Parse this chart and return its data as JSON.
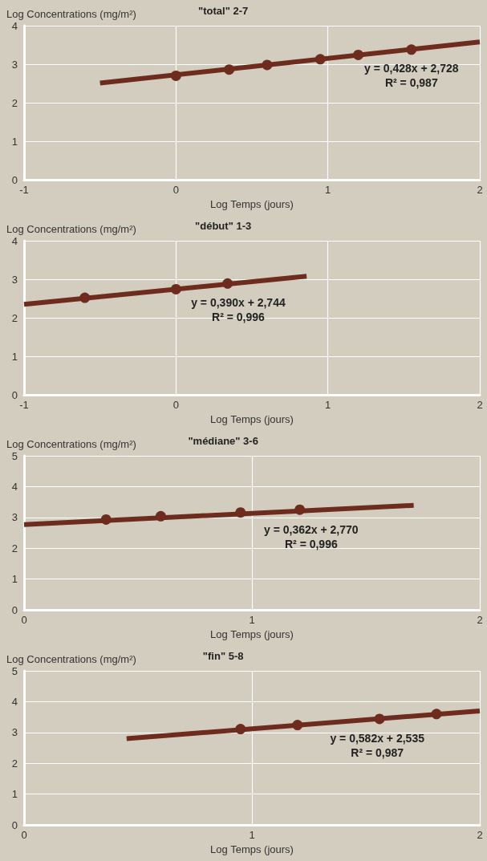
{
  "chart_data": [
    {
      "type": "scatter",
      "title": "\"total\" 2-7",
      "xlabel": "Log Temps (jours)",
      "ylabel": "Log Concentrations (mg/m²)",
      "xlim": [
        -1,
        2
      ],
      "xticks": [
        -1,
        0,
        1,
        2
      ],
      "ylim": [
        0,
        4
      ],
      "yticks": [
        0,
        1,
        2,
        3,
        4
      ],
      "grid": true,
      "marker": "circle",
      "series": [
        {
          "type": "line",
          "color": "#6e2c1e",
          "x": [
            -0.5,
            2
          ],
          "values": [
            2.51,
            3.58
          ],
          "marker": "none"
        },
        {
          "type": "scatter",
          "color": "#6e2c1e",
          "x": [
            0,
            0.35,
            0.6,
            0.95,
            1.2,
            1.55
          ],
          "values": [
            2.7,
            2.86,
            2.98,
            3.13,
            3.24,
            3.38
          ]
        }
      ],
      "annotations": [
        "y = 0,428x + 2,728",
        "R² = 0,987"
      ]
    },
    {
      "type": "scatter",
      "title": "\"début\" 1-3",
      "xlabel": "Log Temps (jours)",
      "ylabel": "Log Concentrations (mg/m²)",
      "xlim": [
        -1,
        2
      ],
      "xticks": [
        -1,
        0,
        1,
        2
      ],
      "ylim": [
        0,
        4
      ],
      "yticks": [
        0,
        1,
        2,
        3,
        4
      ],
      "grid": true,
      "marker": "circle",
      "series": [
        {
          "type": "line",
          "color": "#6e2c1e",
          "x": [
            -1,
            0.86
          ],
          "values": [
            2.35,
            3.08
          ],
          "marker": "none"
        },
        {
          "type": "scatter",
          "color": "#6e2c1e",
          "x": [
            -0.6,
            0,
            0.34
          ],
          "values": [
            2.52,
            2.74,
            2.89
          ]
        }
      ],
      "annotations": [
        "y = 0,390x + 2,744",
        "R² = 0,996"
      ]
    },
    {
      "type": "scatter",
      "title": "\"médiane\" 3-6",
      "xlabel": "Log Temps (jours)",
      "ylabel": "Log Concentrations (mg/m²)",
      "xlim": [
        0,
        2
      ],
      "xticks": [
        0,
        1,
        2
      ],
      "ylim": [
        0,
        5
      ],
      "yticks": [
        0,
        1,
        2,
        3,
        4,
        5
      ],
      "grid": true,
      "marker": "circle",
      "series": [
        {
          "type": "line",
          "color": "#6e2c1e",
          "x": [
            0,
            1.71
          ],
          "values": [
            2.77,
            3.39
          ],
          "marker": "none"
        },
        {
          "type": "scatter",
          "color": "#6e2c1e",
          "x": [
            0.36,
            0.6,
            0.95,
            1.21
          ],
          "values": [
            2.93,
            3.04,
            3.16,
            3.25
          ]
        }
      ],
      "annotations": [
        "y = 0,362x + 2,770",
        "R² = 0,996"
      ]
    },
    {
      "type": "scatter",
      "title": "\"fin\" 5-8",
      "xlabel": "Log Temps (jours)",
      "ylabel": "Log Concentrations (mg/m²)",
      "xlim": [
        0,
        2
      ],
      "xticks": [
        0,
        1,
        2
      ],
      "ylim": [
        0,
        5
      ],
      "yticks": [
        0,
        1,
        2,
        3,
        4,
        5
      ],
      "grid": true,
      "marker": "circle",
      "series": [
        {
          "type": "line",
          "color": "#6e2c1e",
          "x": [
            0.45,
            2
          ],
          "values": [
            2.8,
            3.7
          ],
          "marker": "none"
        },
        {
          "type": "scatter",
          "color": "#6e2c1e",
          "x": [
            0.95,
            1.2,
            1.56,
            1.81
          ],
          "values": [
            3.11,
            3.24,
            3.44,
            3.6
          ]
        }
      ],
      "annotations": [
        "y = 0,582x + 2,535",
        "R² = 0,987"
      ]
    }
  ]
}
